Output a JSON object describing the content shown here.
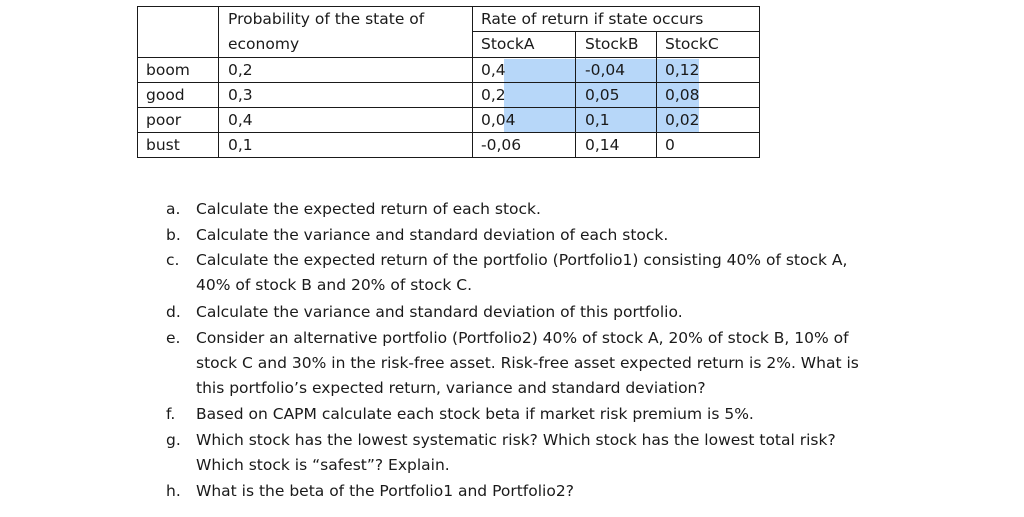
{
  "table": {
    "header_prob_line1": "Probability of the state of",
    "header_prob_line2": "economy",
    "header_rate": "Rate of return if state occurs",
    "stock_headers": [
      "StockA",
      "StockB",
      "StockC"
    ],
    "rows": [
      {
        "state": "boom",
        "prob": "0,2",
        "a": "0,4",
        "b": "-0,04",
        "c": "0,12"
      },
      {
        "state": "good",
        "prob": "0,3",
        "a": "0,2",
        "b": "0,05",
        "c": "0,08"
      },
      {
        "state": "poor",
        "prob": "0,4",
        "a": "0,04",
        "b": "0,1",
        "c": "0,02"
      },
      {
        "state": "bust",
        "prob": "0,1",
        "a": "-0,06",
        "b": "0,14",
        "c": "0"
      }
    ],
    "selection_color": "#b7d7f9"
  },
  "questions": [
    {
      "letter": "a.",
      "lines": [
        "Calculate the expected return of each stock."
      ]
    },
    {
      "letter": "b.",
      "lines": [
        "Calculate the variance and standard deviation of each stock."
      ]
    },
    {
      "letter": "c.",
      "lines": [
        "Calculate the expected return of the portfolio (Portfolio1) consisting 40% of stock A,",
        "40% of stock B and 20% of stock C."
      ]
    },
    {
      "letter": "d.",
      "lines": [
        "Calculate the variance and standard deviation of this portfolio."
      ]
    },
    {
      "letter": "e.",
      "lines": [
        "Consider an alternative portfolio (Portfolio2) 40% of stock A, 20% of stock B, 10% of",
        "stock C and 30% in the risk-free asset. Risk-free asset expected return is 2%. What is",
        "this portfolio’s expected return, variance and standard deviation?"
      ]
    },
    {
      "letter": "f.",
      "lines": [
        "Based on CAPM calculate each stock beta if market risk premium is 5%."
      ]
    },
    {
      "letter": "g.",
      "lines": [
        "Which stock has the lowest systematic risk? Which stock has the lowest total risk?",
        "Which stock is “safest”? Explain."
      ]
    },
    {
      "letter": "h.",
      "lines": [
        "What is the beta of the Portfolio1 and Portfolio2?"
      ]
    }
  ]
}
